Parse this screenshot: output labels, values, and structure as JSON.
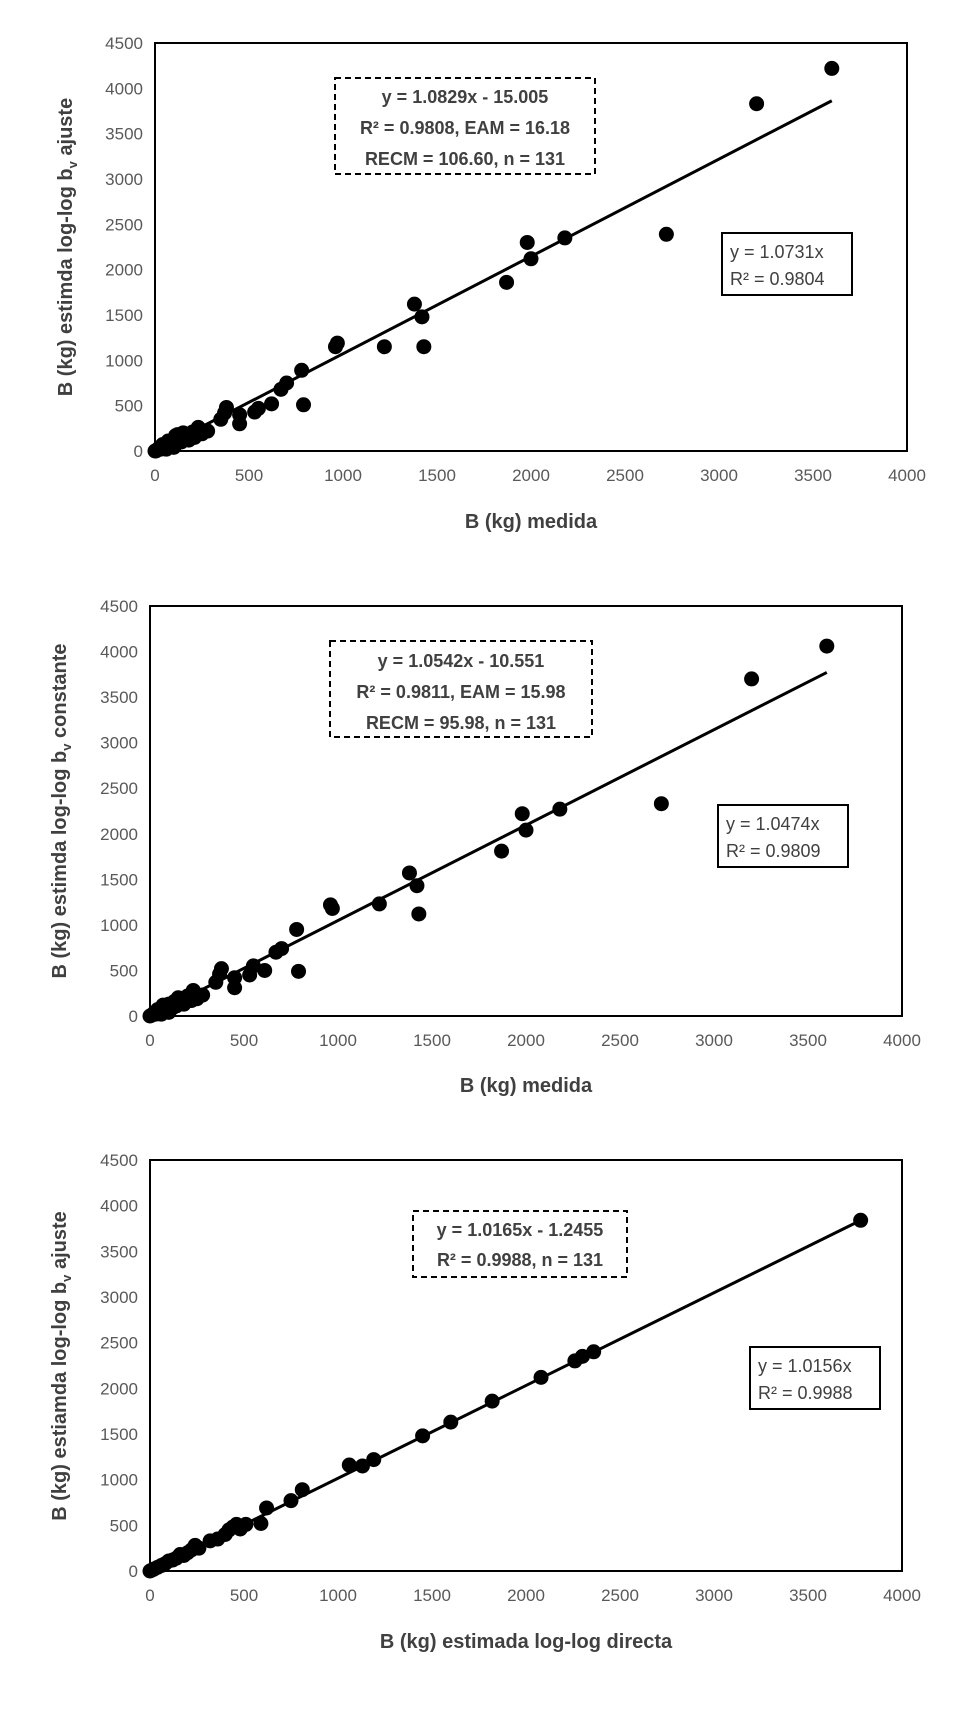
{
  "chart_data": [
    {
      "type": "scatter",
      "xlabel": "B (kg) medida",
      "ylabel_main": "B (kg)  estimda log-log b",
      "ylabel_sub": "v",
      "ylabel_tail": " ajuste",
      "xlim": [
        0,
        4000
      ],
      "ylim": [
        0,
        4500
      ],
      "x_ticks": [
        "0",
        "500",
        "1000",
        "1500",
        "2000",
        "2500",
        "3000",
        "3500",
        "4000"
      ],
      "y_ticks": [
        "0",
        "500",
        "1000",
        "1500",
        "2000",
        "2500",
        "3000",
        "3500",
        "4000",
        "4500"
      ],
      "trendline": {
        "slope": 1.0731,
        "intercept": 0
      },
      "annotation_dashed": [
        "y = 1.0829x - 15.005",
        "R² = 0.9808, EAM = 16.18",
        "RECM = 106.60, n = 131"
      ],
      "annotation_solid": [
        "y = 1.0731x",
        "R² = 0.9804"
      ],
      "points": [
        [
          3600,
          4220
        ],
        [
          3200,
          3830
        ],
        [
          2720,
          2390
        ],
        [
          2180,
          2350
        ],
        [
          2000,
          2120
        ],
        [
          1980,
          2300
        ],
        [
          1870,
          1860
        ],
        [
          1420,
          1480
        ],
        [
          1380,
          1620
        ],
        [
          1430,
          1150
        ],
        [
          1220,
          1150
        ],
        [
          970,
          1190
        ],
        [
          960,
          1150
        ],
        [
          780,
          890
        ],
        [
          790,
          510
        ],
        [
          700,
          750
        ],
        [
          670,
          680
        ],
        [
          620,
          520
        ],
        [
          530,
          430
        ],
        [
          550,
          470
        ],
        [
          450,
          300
        ],
        [
          450,
          400
        ],
        [
          380,
          480
        ],
        [
          370,
          420
        ],
        [
          350,
          350
        ],
        [
          280,
          220
        ],
        [
          250,
          190
        ],
        [
          230,
          260
        ],
        [
          220,
          180
        ],
        [
          210,
          150
        ],
        [
          200,
          210
        ],
        [
          180,
          120
        ],
        [
          170,
          170
        ],
        [
          150,
          200
        ],
        [
          140,
          100
        ],
        [
          130,
          140
        ],
        [
          120,
          90
        ],
        [
          110,
          170
        ],
        [
          100,
          120
        ],
        [
          90,
          60
        ],
        [
          80,
          90
        ],
        [
          70,
          110
        ],
        [
          60,
          60
        ],
        [
          50,
          40
        ],
        [
          40,
          70
        ],
        [
          30,
          20
        ],
        [
          20,
          30
        ],
        [
          10,
          10
        ],
        [
          0,
          0
        ],
        [
          5,
          -10
        ],
        [
          60,
          20
        ],
        [
          100,
          40
        ],
        [
          160,
          150
        ],
        [
          120,
          180
        ],
        [
          240,
          240
        ]
      ]
    },
    {
      "type": "scatter",
      "xlabel": "B (kg) medida",
      "ylabel_main": "B (kg)  estimda log-log b",
      "ylabel_sub": "v",
      "ylabel_tail": " constante",
      "xlim": [
        0,
        4000
      ],
      "ylim": [
        0,
        4500
      ],
      "x_ticks": [
        "0",
        "500",
        "1000",
        "1500",
        "2000",
        "2500",
        "3000",
        "3500",
        "4000"
      ],
      "y_ticks": [
        "0",
        "500",
        "1000",
        "1500",
        "2000",
        "2500",
        "3000",
        "3500",
        "4000",
        "4500"
      ],
      "trendline": {
        "slope": 1.0474,
        "intercept": 0
      },
      "annotation_dashed": [
        "y = 1.0542x - 10.551",
        "R² = 0.9811, EAM = 15.98",
        "RECM = 95.98, n = 131"
      ],
      "annotation_solid": [
        "y = 1.0474x",
        "R² = 0.9809"
      ],
      "points": [
        [
          3600,
          4060
        ],
        [
          3200,
          3700
        ],
        [
          2720,
          2330
        ],
        [
          2180,
          2270
        ],
        [
          2000,
          2040
        ],
        [
          1980,
          2220
        ],
        [
          1870,
          1810
        ],
        [
          1420,
          1430
        ],
        [
          1380,
          1570
        ],
        [
          1430,
          1120
        ],
        [
          1220,
          1230
        ],
        [
          970,
          1180
        ],
        [
          960,
          1220
        ],
        [
          780,
          950
        ],
        [
          790,
          490
        ],
        [
          700,
          740
        ],
        [
          670,
          700
        ],
        [
          610,
          500
        ],
        [
          530,
          450
        ],
        [
          550,
          550
        ],
        [
          450,
          310
        ],
        [
          450,
          420
        ],
        [
          380,
          520
        ],
        [
          370,
          460
        ],
        [
          350,
          370
        ],
        [
          280,
          230
        ],
        [
          250,
          190
        ],
        [
          230,
          280
        ],
        [
          220,
          170
        ],
        [
          200,
          220
        ],
        [
          180,
          130
        ],
        [
          170,
          190
        ],
        [
          150,
          200
        ],
        [
          140,
          110
        ],
        [
          130,
          160
        ],
        [
          120,
          90
        ],
        [
          100,
          130
        ],
        [
          90,
          60
        ],
        [
          80,
          100
        ],
        [
          70,
          120
        ],
        [
          60,
          60
        ],
        [
          50,
          40
        ],
        [
          40,
          70
        ],
        [
          30,
          20
        ],
        [
          20,
          30
        ],
        [
          10,
          10
        ],
        [
          0,
          0
        ],
        [
          60,
          20
        ],
        [
          100,
          40
        ],
        [
          160,
          150
        ],
        [
          240,
          240
        ]
      ]
    },
    {
      "type": "scatter",
      "xlabel": "B (kg) estimada log-log directa",
      "ylabel_main": "B (kg)  estiamda log-log b",
      "ylabel_sub": "v",
      "ylabel_tail": " ajuste",
      "xlim": [
        0,
        4000
      ],
      "ylim": [
        0,
        4500
      ],
      "x_ticks": [
        "0",
        "500",
        "1000",
        "1500",
        "2000",
        "2500",
        "3000",
        "3500",
        "4000"
      ],
      "y_ticks": [
        "0",
        "500",
        "1000",
        "1500",
        "2000",
        "2500",
        "3000",
        "3500",
        "4000",
        "4500"
      ],
      "trendline": {
        "slope": 1.0156,
        "intercept": 0
      },
      "annotation_dashed": [
        "y = 1.0165x - 1.2455",
        "R² = 0.9988, n = 131"
      ],
      "annotation_solid": [
        "y = 1.0156x",
        "R² = 0.9988"
      ],
      "points": [
        [
          3780,
          3840
        ],
        [
          2360,
          2400
        ],
        [
          2300,
          2350
        ],
        [
          2260,
          2300
        ],
        [
          2080,
          2120
        ],
        [
          1820,
          1860
        ],
        [
          1600,
          1630
        ],
        [
          1450,
          1480
        ],
        [
          1190,
          1220
        ],
        [
          1130,
          1150
        ],
        [
          1060,
          1160
        ],
        [
          810,
          890
        ],
        [
          750,
          770
        ],
        [
          620,
          690
        ],
        [
          590,
          520
        ],
        [
          510,
          510
        ],
        [
          480,
          460
        ],
        [
          460,
          510
        ],
        [
          440,
          480
        ],
        [
          420,
          450
        ],
        [
          400,
          400
        ],
        [
          360,
          350
        ],
        [
          320,
          330
        ],
        [
          260,
          250
        ],
        [
          240,
          280
        ],
        [
          220,
          230
        ],
        [
          200,
          200
        ],
        [
          180,
          170
        ],
        [
          160,
          180
        ],
        [
          140,
          140
        ],
        [
          120,
          120
        ],
        [
          100,
          110
        ],
        [
          80,
          80
        ],
        [
          60,
          60
        ],
        [
          40,
          40
        ],
        [
          20,
          20
        ],
        [
          10,
          10
        ],
        [
          0,
          0
        ]
      ]
    }
  ]
}
